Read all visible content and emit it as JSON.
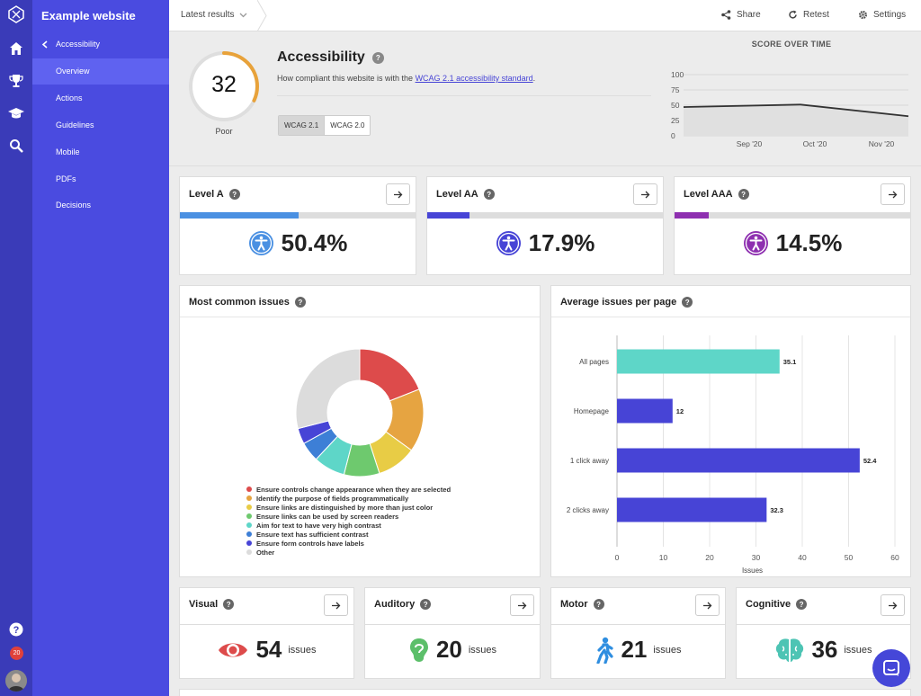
{
  "rail": {
    "notifications": "20"
  },
  "sidebar": {
    "site": "Example website",
    "back": "Accessibility",
    "items": [
      {
        "label": "Overview",
        "active": true
      },
      {
        "label": "Actions"
      },
      {
        "label": "Guidelines"
      },
      {
        "label": "Mobile"
      },
      {
        "label": "PDFs"
      },
      {
        "label": "Decisions"
      }
    ]
  },
  "topbar": {
    "latest": "Latest results",
    "share": "Share",
    "retest": "Retest",
    "settings": "Settings"
  },
  "score": {
    "value": "32",
    "label": "Poor",
    "fraction": 0.32,
    "color": "#e8a23a"
  },
  "hero": {
    "title": "Accessibility",
    "desc_prefix": "How compliant this website is with the ",
    "desc_link": "WCAG 2.1 accessibility standard",
    "desc_suffix": ".",
    "tabs": [
      "WCAG 2.1",
      "WCAG 2.0"
    ]
  },
  "score_over_time": {
    "title": "SCORE OVER TIME",
    "chart_data": {
      "type": "area",
      "x": [
        "Sep '20",
        "Oct '20",
        "Nov '20"
      ],
      "y_ticks": [
        "100",
        "75",
        "50",
        "25",
        "0"
      ],
      "ylim": [
        0,
        100
      ],
      "values_approx": [
        47,
        51,
        32
      ]
    }
  },
  "levels": [
    {
      "name": "Level A",
      "pct": "50.4%",
      "fraction": 0.504,
      "color": "#4a90e2"
    },
    {
      "name": "Level AA",
      "pct": "17.9%",
      "fraction": 0.179,
      "color": "#4744d6"
    },
    {
      "name": "Level AAA",
      "pct": "14.5%",
      "fraction": 0.145,
      "color": "#8e2fb0"
    }
  ],
  "common_issues": {
    "title": "Most common issues",
    "chart_data": {
      "type": "pie",
      "labels": [
        "Ensure controls change appearance when they are selected",
        "Identify the purpose of fields programmatically",
        "Ensure links are distinguished by more than just color",
        "Ensure links can be used by screen readers",
        "Aim for text to have very high contrast",
        "Ensure text has sufficient contrast",
        "Ensure form controls have labels",
        "Other"
      ],
      "values": [
        19,
        16,
        10,
        9,
        8,
        5,
        4,
        29
      ],
      "colors": [
        "#dd4b4b",
        "#e6a441",
        "#e8cc45",
        "#6ec96e",
        "#5ed6c8",
        "#3d7fd6",
        "#4744d6",
        "#dcdcdc"
      ]
    }
  },
  "avg_issues": {
    "title": "Average issues per page",
    "chart_data": {
      "type": "bar",
      "orientation": "horizontal",
      "categories": [
        "All pages",
        "Homepage",
        "1 click away",
        "2 clicks away"
      ],
      "values": [
        35.1,
        12,
        52.4,
        32.3
      ],
      "value_labels": [
        "35.1",
        "12",
        "52.4",
        "32.3"
      ],
      "colors": [
        "#5ed6c8",
        "#4744d6",
        "#4744d6",
        "#4744d6"
      ],
      "xlim": [
        0,
        60
      ],
      "x_ticks": [
        "0",
        "10",
        "20",
        "30",
        "40",
        "50",
        "60"
      ],
      "xlabel": "Issues"
    }
  },
  "categories": [
    {
      "name": "Visual",
      "count": "54",
      "unit": "issues",
      "icon": "eye-icon",
      "color": "#dd4b4b"
    },
    {
      "name": "Auditory",
      "count": "20",
      "unit": "issues",
      "icon": "ear-icon",
      "color": "#5cbf6a"
    },
    {
      "name": "Motor",
      "count": "21",
      "unit": "issues",
      "icon": "person-walking-icon",
      "color": "#2f8ee0"
    },
    {
      "name": "Cognitive",
      "count": "36",
      "unit": "issues",
      "icon": "brain-icon",
      "color": "#4dc4b4"
    }
  ]
}
